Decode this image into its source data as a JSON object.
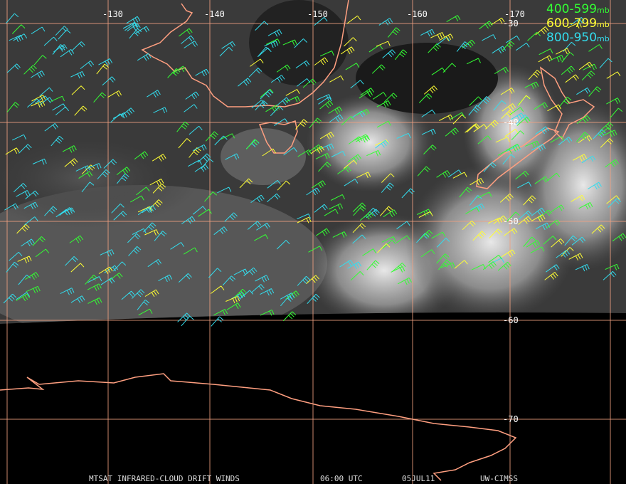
{
  "grid": {
    "longitudes": [
      "-130",
      "-140",
      "-150",
      "-160",
      "-170"
    ],
    "latitudes": [
      "-30",
      "-40",
      "-50",
      "-60",
      "-70"
    ]
  },
  "legend": [
    {
      "range": "400-599",
      "unit": "mb",
      "color": "#33ff33"
    },
    {
      "range": "600-799",
      "unit": "mb",
      "color": "#ffff33"
    },
    {
      "range": "800-950",
      "unit": "mb",
      "color": "#33ddee"
    }
  ],
  "footer": {
    "product": "MTSAT INFRARED-CLOUD DRIFT WINDS",
    "time": "06:00 UTC",
    "date": "05JUL11",
    "source": "UW-CIMSS"
  }
}
